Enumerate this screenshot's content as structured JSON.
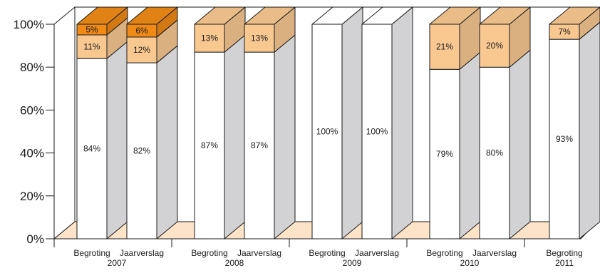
{
  "chart_data": {
    "type": "bar",
    "stacked": true,
    "three_d": true,
    "ylim": [
      0,
      100
    ],
    "yticks": [
      "0%",
      "20%",
      "40%",
      "60%",
      "80%",
      "100%"
    ],
    "grid": false,
    "groups": [
      {
        "label": "2007",
        "bars": [
          {
            "label": "Begroting",
            "segments": [
              {
                "value": 84,
                "text": "84%",
                "color": "#ffffff"
              },
              {
                "value": 11,
                "text": "11%",
                "color": "#f9c891"
              },
              {
                "value": 5,
                "text": "5%",
                "color": "#ef8a17"
              }
            ]
          },
          {
            "label": "Jaarverslag",
            "segments": [
              {
                "value": 82,
                "text": "82%",
                "color": "#ffffff"
              },
              {
                "value": 12,
                "text": "12%",
                "color": "#f9c891"
              },
              {
                "value": 6,
                "text": "6%",
                "color": "#ef8a17"
              }
            ]
          }
        ]
      },
      {
        "label": "2008",
        "bars": [
          {
            "label": "Begroting",
            "segments": [
              {
                "value": 87,
                "text": "87%",
                "color": "#ffffff"
              },
              {
                "value": 13,
                "text": "13%",
                "color": "#f9c891"
              }
            ]
          },
          {
            "label": "Jaarverslag",
            "segments": [
              {
                "value": 87,
                "text": "87%",
                "color": "#ffffff"
              },
              {
                "value": 13,
                "text": "13%",
                "color": "#f9c891"
              }
            ]
          }
        ]
      },
      {
        "label": "2009",
        "bars": [
          {
            "label": "Begroting",
            "segments": [
              {
                "value": 100,
                "text": "100%",
                "color": "#ffffff"
              }
            ]
          },
          {
            "label": "Jaarverslag",
            "segments": [
              {
                "value": 100,
                "text": "100%",
                "color": "#ffffff"
              }
            ]
          }
        ]
      },
      {
        "label": "2010",
        "bars": [
          {
            "label": "Begroting",
            "segments": [
              {
                "value": 79,
                "text": "79%",
                "color": "#ffffff"
              },
              {
                "value": 21,
                "text": "21%",
                "color": "#f9c891"
              }
            ]
          },
          {
            "label": "Jaarverslag",
            "segments": [
              {
                "value": 80,
                "text": "80%",
                "color": "#ffffff"
              },
              {
                "value": 20,
                "text": "20%",
                "color": "#f9c891"
              }
            ]
          }
        ]
      },
      {
        "label": "2011",
        "bars": [
          {
            "label": "Begroting",
            "segments": [
              {
                "value": 93,
                "text": "93%",
                "color": "#ffffff"
              },
              {
                "value": 7,
                "text": "7%",
                "color": "#f9c891"
              }
            ]
          }
        ]
      }
    ],
    "colors": {
      "side": "#d2d2d4",
      "wall": "#ffffff",
      "floor": "#fde3c8",
      "stroke": "#1a1a1a"
    }
  }
}
